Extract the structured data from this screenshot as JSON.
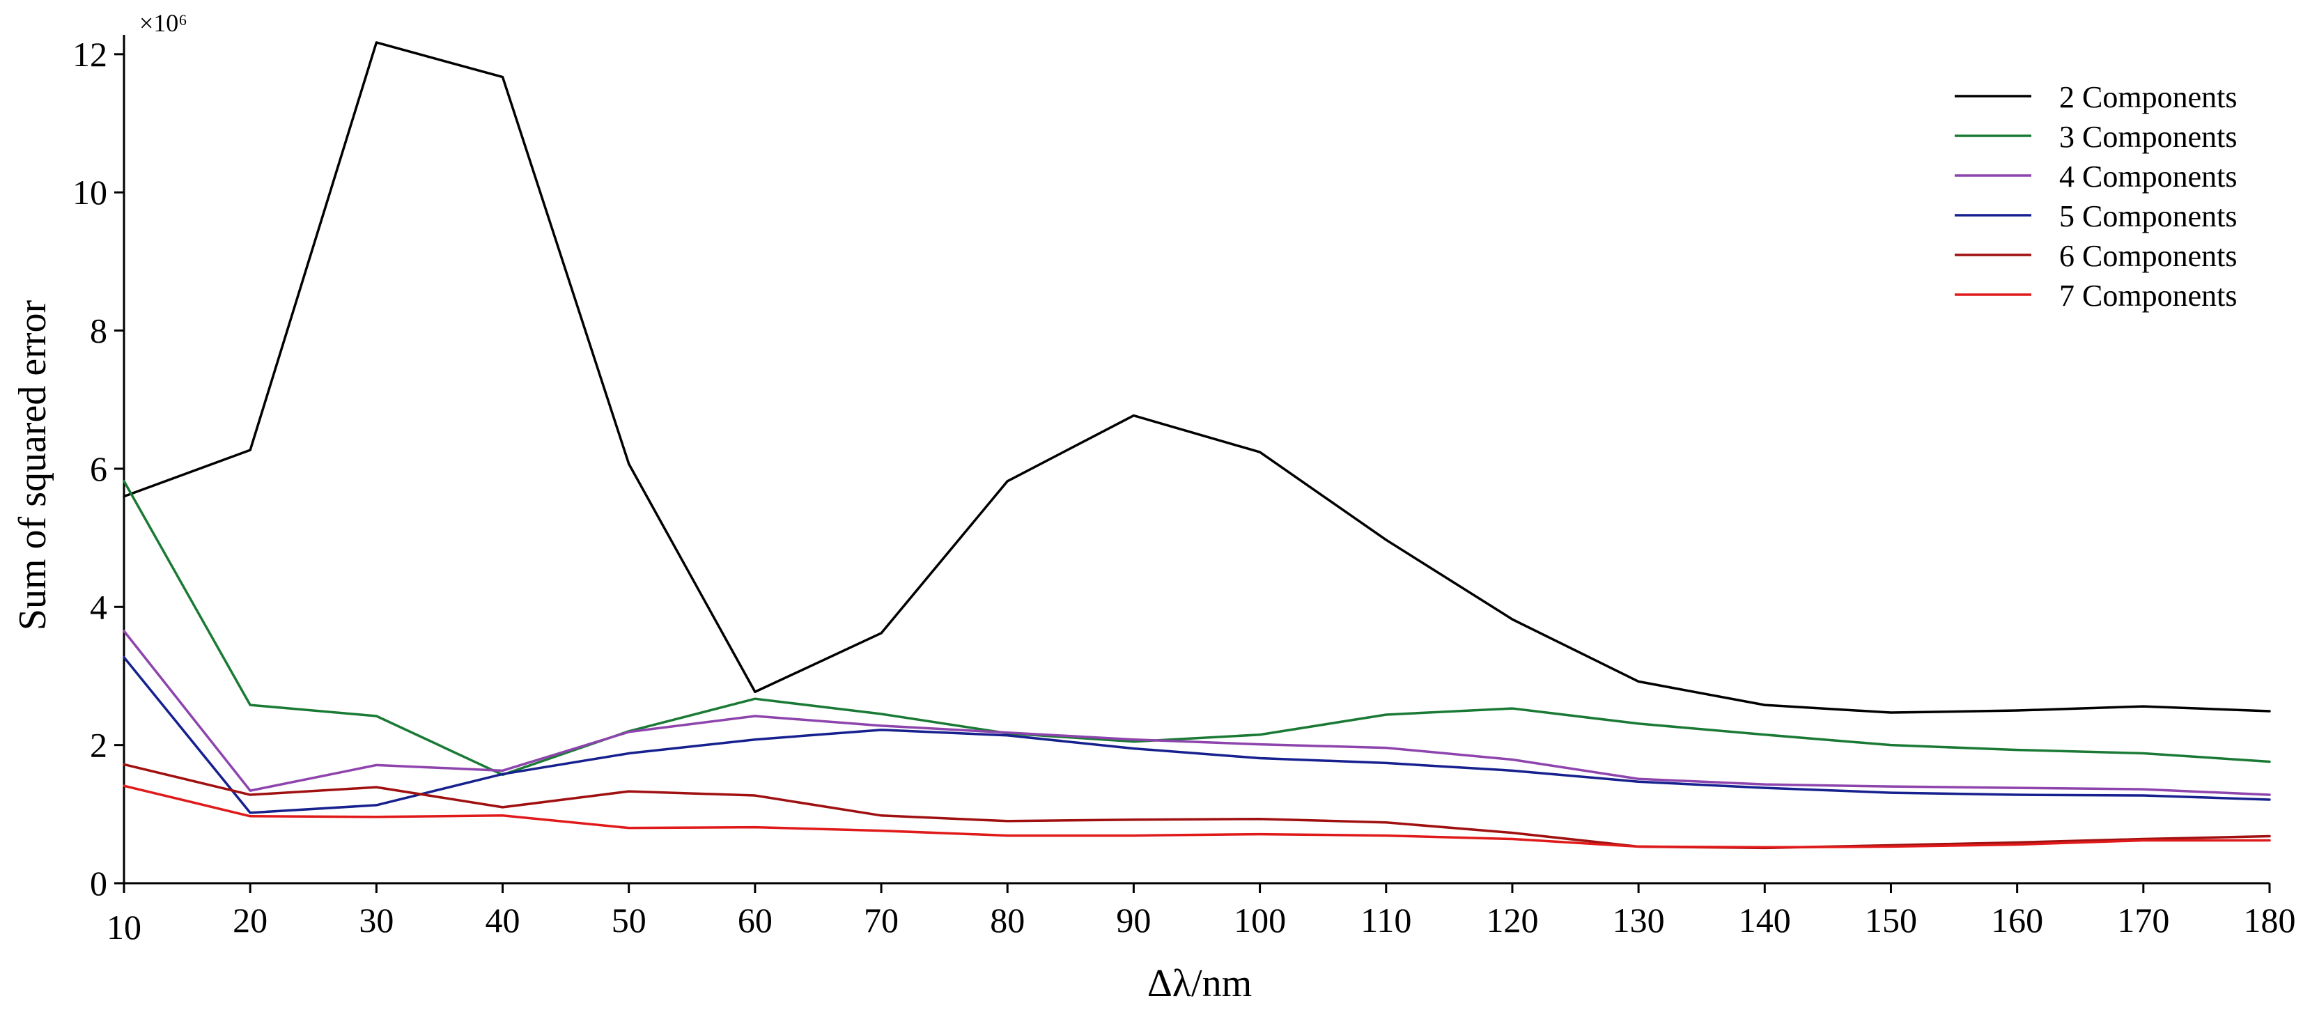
{
  "chart_data": {
    "type": "line",
    "title": "",
    "xlabel": "Δλ/nm",
    "ylabel": "Sum of squared error",
    "y_multiplier_label": "×10⁶",
    "x": [
      10,
      20,
      30,
      40,
      50,
      60,
      70,
      80,
      90,
      100,
      110,
      120,
      130,
      140,
      150,
      160,
      170,
      180
    ],
    "xlim": [
      10,
      180
    ],
    "ylim": [
      0,
      12.2
    ],
    "xticks": [
      10,
      20,
      30,
      40,
      50,
      60,
      70,
      80,
      90,
      100,
      110,
      120,
      130,
      140,
      150,
      160,
      170,
      180
    ],
    "yticks": [
      0,
      2,
      4,
      6,
      8,
      10,
      12
    ],
    "grid": false,
    "legend_position": "top-right",
    "series": [
      {
        "name": "2 Components",
        "color": "#000000",
        "values": [
          5.6,
          6.27,
          12.17,
          11.67,
          6.07,
          2.77,
          3.62,
          5.82,
          6.77,
          6.24,
          4.97,
          3.82,
          2.92,
          2.58,
          2.47,
          2.5,
          2.56,
          2.49
        ]
      },
      {
        "name": "3 Components",
        "color": "#1a7a35",
        "values": [
          5.82,
          2.58,
          2.42,
          1.57,
          2.2,
          2.67,
          2.45,
          2.17,
          2.05,
          2.15,
          2.44,
          2.53,
          2.31,
          2.15,
          2.0,
          1.93,
          1.88,
          1.76
        ]
      },
      {
        "name": "4 Components",
        "color": "#8e44ad",
        "values": [
          3.65,
          1.34,
          1.71,
          1.63,
          2.19,
          2.42,
          2.28,
          2.18,
          2.08,
          2.01,
          1.96,
          1.79,
          1.51,
          1.43,
          1.4,
          1.38,
          1.36,
          1.28
        ]
      },
      {
        "name": "5 Components",
        "color": "#16208e",
        "values": [
          3.27,
          1.02,
          1.13,
          1.58,
          1.88,
          2.08,
          2.22,
          2.14,
          1.95,
          1.81,
          1.74,
          1.63,
          1.47,
          1.38,
          1.31,
          1.28,
          1.27,
          1.21
        ]
      },
      {
        "name": "6 Components",
        "color": "#a01010",
        "values": [
          1.72,
          1.28,
          1.39,
          1.1,
          1.33,
          1.27,
          0.98,
          0.9,
          0.92,
          0.93,
          0.88,
          0.73,
          0.53,
          0.51,
          0.55,
          0.59,
          0.64,
          0.68
        ]
      },
      {
        "name": "7 Components",
        "color": "#e01a1a",
        "values": [
          1.41,
          0.97,
          0.96,
          0.98,
          0.8,
          0.81,
          0.76,
          0.69,
          0.69,
          0.71,
          0.69,
          0.64,
          0.53,
          0.52,
          0.53,
          0.56,
          0.62,
          0.62
        ]
      }
    ]
  }
}
